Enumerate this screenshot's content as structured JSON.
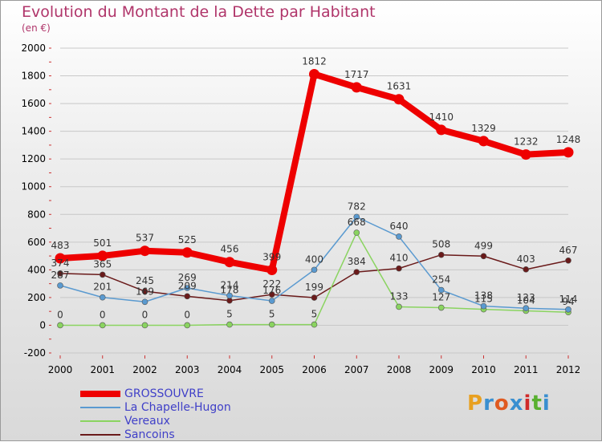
{
  "title": "Evolution du Montant de la Dette par Habitant",
  "subtitle": "(en €)",
  "brand": {
    "text": "Proxiti",
    "colors": [
      "#e8a020",
      "#3a8fd0",
      "#e05a20",
      "#3a8fd0",
      "#d02a2a",
      "#58b030",
      "#3a8fd0"
    ]
  },
  "chart_data": {
    "type": "line",
    "categories": [
      "2000",
      "2001",
      "2002",
      "2003",
      "2004",
      "2005",
      "2006",
      "2007",
      "2008",
      "2009",
      "2010",
      "2011",
      "2012"
    ],
    "ylim": [
      -200,
      2000
    ],
    "yticks": [
      -200,
      0,
      200,
      400,
      600,
      800,
      1000,
      1200,
      1400,
      1600,
      1800,
      2000
    ],
    "ylabel_unit": "(en €)",
    "legend_position": "bottom-left",
    "series": [
      {
        "name": "GROSSOUVRE",
        "color": "#ee0000",
        "values": [
          483,
          501,
          537,
          525,
          456,
          399,
          1812,
          1717,
          1631,
          1410,
          1329,
          1232,
          1248
        ]
      },
      {
        "name": "La Chapelle-Hugon",
        "color": "#5a9ad0",
        "values": [
          287,
          201,
          169,
          269,
          214,
          176,
          400,
          782,
          640,
          254,
          138,
          123,
          114
        ]
      },
      {
        "name": "Vereaux",
        "color": "#8ad460",
        "values": [
          0,
          0,
          0,
          0,
          5,
          5,
          5,
          668,
          133,
          127,
          115,
          104,
          94
        ]
      },
      {
        "name": "Sancoins",
        "color": "#6a1a1a",
        "values": [
          374,
          365,
          245,
          209,
          178,
          222,
          199,
          384,
          410,
          508,
          499,
          403,
          467
        ]
      }
    ]
  }
}
